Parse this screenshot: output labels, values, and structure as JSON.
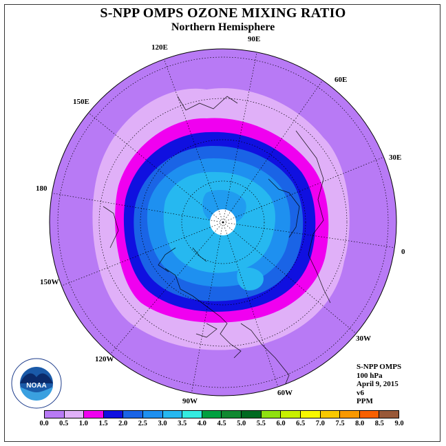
{
  "title": "S-NPP OMPS OZONE MIXING RATIO",
  "subtitle": "Northern Hemisphere",
  "longitude_labels": [
    "90E",
    "60E",
    "30E",
    "0",
    "30W",
    "60W",
    "90W",
    "120W",
    "150W",
    "180",
    "150E",
    "120E"
  ],
  "info": {
    "instrument": "S-NPP OMPS",
    "level": "100 hPa",
    "date": "April 9, 2015",
    "version": "v6",
    "units": "PPM"
  },
  "logo_text": "NOAA",
  "colorbar": {
    "ticks": [
      "0.0",
      "0.5",
      "1.0",
      "1.5",
      "2.0",
      "2.5",
      "3.0",
      "3.5",
      "4.0",
      "4.5",
      "5.0",
      "5.5",
      "6.0",
      "6.5",
      "7.0",
      "7.5",
      "8.0",
      "8.5",
      "9.0"
    ],
    "colors": [
      "#b87af5",
      "#e0b0f8",
      "#f000f0",
      "#1010e0",
      "#1a64e6",
      "#1e90f0",
      "#26b8f0",
      "#34ece0",
      "#00a040",
      "#108830",
      "#006a20",
      "#90e010",
      "#c8f000",
      "#f8f800",
      "#f8c800",
      "#f89800",
      "#f86000",
      "#f00000",
      "#985838"
    ]
  },
  "map_colors": {
    "disk_outer": "#b87af5",
    "ring_0p5_1p0": "#e0b0f8",
    "ring_1p0_1p5": "#f000f0",
    "ring_1p5_2p0": "#1010e0",
    "ring_2p0_2p5": "#1a64e6",
    "ring_2p5_3p0": "#1e90f0",
    "ring_3p0_3p5": "#26b8f0",
    "polar_hole": "#ffffff"
  }
}
